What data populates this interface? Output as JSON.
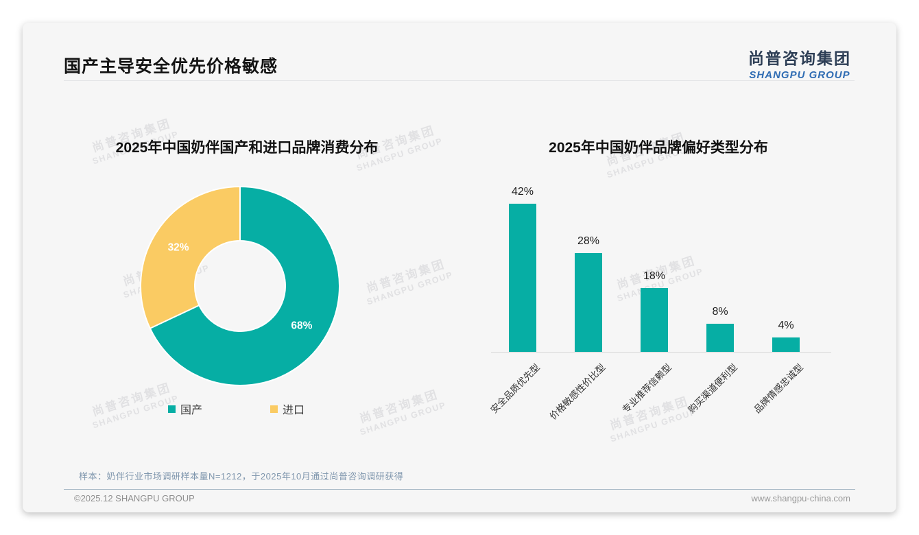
{
  "header": {
    "title": "国产主导安全优先价格敏感",
    "logo": {
      "cn": "尚普咨询集团",
      "en": "SHANGPU GROUP"
    }
  },
  "watermark": {
    "cn": "尚普咨询集团",
    "en": "SHANGPU GROUP"
  },
  "chart_data": [
    {
      "type": "pie",
      "subtype": "donut",
      "title": "2025年中国奶伴国产和进口品牌消费分布",
      "labels": [
        "国产",
        "进口"
      ],
      "values": [
        68,
        32
      ],
      "value_labels": [
        "68%",
        "32%"
      ],
      "colors": [
        "#06AEA4",
        "#FACB63"
      ],
      "legend_position": "bottom",
      "start_angle_deg_from_top": 0,
      "direction": "clockwise"
    },
    {
      "type": "bar",
      "title": "2025年中国奶伴品牌偏好类型分布",
      "categories": [
        "安全品质优先型",
        "价格敏感性价比型",
        "专业推荐信赖型",
        "购买渠道便利型",
        "品牌情感忠诚型"
      ],
      "values": [
        42,
        28,
        18,
        8,
        4
      ],
      "value_labels": [
        "42%",
        "28%",
        "18%",
        "8%",
        "4%"
      ],
      "bar_color": "#06AEA4",
      "ylim": [
        0,
        45
      ],
      "grid": false,
      "x_tick_rotation": -45,
      "legend_position": "none"
    }
  ],
  "footnote": "样本：奶伴行业市场调研样本量N=1212，于2025年10月通过尚普咨询调研获得",
  "footer": {
    "left": "©2025.12 SHANGPU GROUP",
    "right": "www.shangpu-china.com"
  },
  "colors": {
    "accent_teal": "#06AEA4",
    "accent_yellow": "#FACB63",
    "logo_navy": "#2D3E55",
    "logo_blue": "#2F6CB3",
    "footnote_blue_gray": "#7F96AD",
    "card_background": "#F6F6F6"
  }
}
